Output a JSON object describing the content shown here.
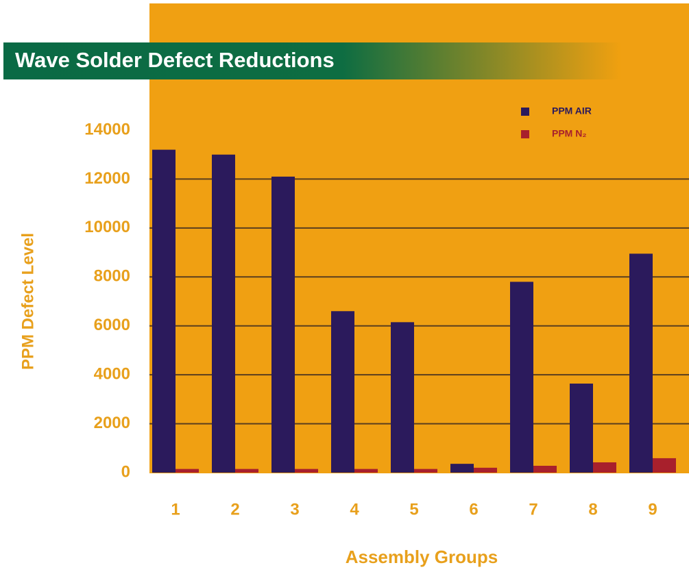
{
  "chart_data": {
    "type": "bar",
    "title": "Wave Solder Defect Reductions",
    "y_label": "PPM Defect Level",
    "x_label": "Assembly Groups",
    "categories": [
      "1",
      "2",
      "3",
      "4",
      "5",
      "6",
      "7",
      "8",
      "9"
    ],
    "series": [
      {
        "name": "PPM AIR",
        "color": "#2b1a5c",
        "values": [
          13200,
          13000,
          12100,
          6600,
          6150,
          360,
          7800,
          3640,
          8950
        ]
      },
      {
        "name": "PPM N₂",
        "color": "#a8202c",
        "values": [
          150,
          150,
          150,
          150,
          150,
          200,
          280,
          420,
          590
        ]
      }
    ],
    "ylim": [
      0,
      14000
    ],
    "yticks": [
      0,
      2000,
      4000,
      6000,
      8000,
      10000,
      12000,
      14000
    ],
    "grid": true,
    "legend": "top-right"
  }
}
